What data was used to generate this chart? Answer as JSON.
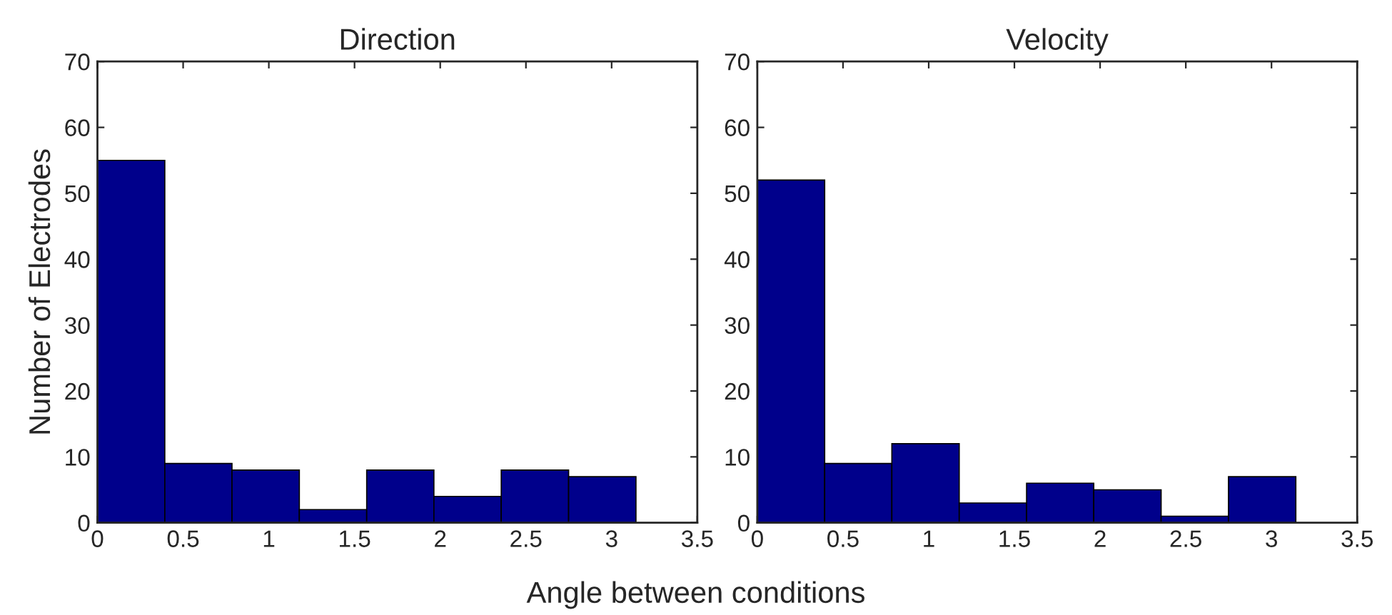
{
  "chart_data": [
    {
      "type": "histogram",
      "title": "Direction",
      "xlabel": "Angle between conditions",
      "ylabel": "Number of Electrodes",
      "bins": [
        0,
        0.393,
        0.785,
        1.178,
        1.571,
        1.963,
        2.356,
        2.749,
        3.142
      ],
      "values": [
        55,
        9,
        8,
        2,
        8,
        4,
        8,
        7
      ],
      "color": "#00008b",
      "xlim": [
        0,
        3.5
      ],
      "ylim": [
        0,
        70
      ],
      "xticks": [
        0,
        0.5,
        1,
        1.5,
        2,
        2.5,
        3,
        3.5
      ],
      "yticks": [
        0,
        10,
        20,
        30,
        40,
        50,
        60,
        70
      ]
    },
    {
      "type": "histogram",
      "title": "Velocity",
      "bins": [
        0,
        0.393,
        0.785,
        1.178,
        1.571,
        1.963,
        2.356,
        2.749,
        3.142
      ],
      "values": [
        52,
        9,
        12,
        3,
        6,
        5,
        1,
        7
      ],
      "color": "#00008b",
      "xlim": [
        0,
        3.5
      ],
      "ylim": [
        0,
        70
      ],
      "xticks": [
        0,
        0.5,
        1,
        1.5,
        2,
        2.5,
        3,
        3.5
      ],
      "yticks": [
        0,
        10,
        20,
        30,
        40,
        50,
        60,
        70
      ]
    }
  ]
}
